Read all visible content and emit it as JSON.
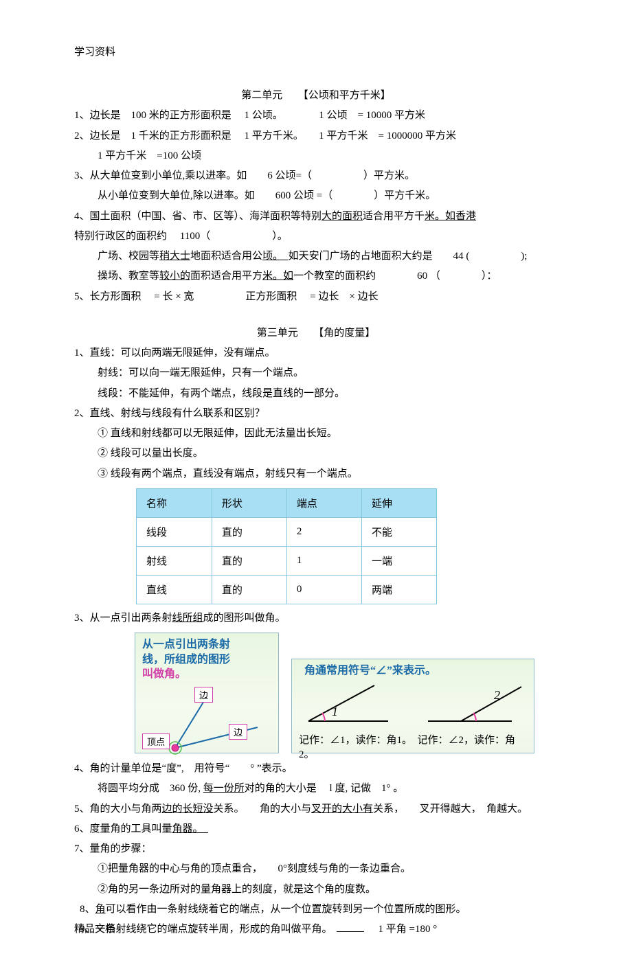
{
  "doc": {
    "header": "学习资料",
    "footer": "精品文档"
  },
  "unit2": {
    "title": "第二单元　　【公顷和平方千米】",
    "l1": "1、边长是　100 米的正方形面积是　 1 公顷。　　　　1 公顷　= 10000 平方米",
    "l2": "2、边长是　1 千米的正方形面积是　 1 平方千米。　　1 平方千米　= 1000000 平方米",
    "l2b": "1 平方千米　=100 公顷",
    "l3a": "3、从大单位变到小单位,乘以进率。如　　6 公顷=（　　　　　）平方米。",
    "l3b": "从小单位变到大单位,除以进率。如　　600 公顷 =（　　　　）平方千米。",
    "l4a_pre": "4、国土面积（中国、省、市、区等）、海洋面积等特别",
    "l4a_u": "大的面积",
    "l4a_post": "适合用平方千",
    "l4a_u2": "米。如香港",
    "l4b": "特别行政区的面积约　 1100（　　　　　　）。",
    "l4c_pre": "广场、校园等",
    "l4c_u": "稍大士",
    "l4c_post": "地面积适合用公",
    "l4c_u2": "顷。　",
    "l4c_tail": "如天安门广场的占地面积大约是　　44 (　　　　　);",
    "l4d_pre": "操场、教室等",
    "l4d_u": "较小的",
    "l4d_post": "面积适合用平方",
    "l4d_u2": "米。如",
    "l4d_tail": "一个教室的面积约　　　　60 （　　　　）：",
    "l5": "5、长方形面积　 =  长  ×  宽　　　　　正方形面积　 =  边长　×  边长"
  },
  "unit3": {
    "title": "第三单元　　【角的度量】",
    "l1a": "1、直线：可以向两端无限延伸，没有端点。",
    "l1b": "射线：可以向一端无限延伸，只有一个端点。",
    "l1c": "线段：不能延伸，有两个端点，线段是直线的一部分。",
    "l2": "2、直线、射线与线段有什么联系和区别？",
    "l2a": "①  直线和射线都可以无限延伸，因此无法量出长短。",
    "l2b": "②  线段可以量出长度。",
    "l2c": "③  线段有两个端点，直线没有端点，射线只有一个端点。",
    "table": {
      "header_bg": "#a8dff5",
      "border_color": "#86c6e0",
      "columns": [
        "名称",
        "形状",
        "端点",
        "延伸"
      ],
      "rows": [
        [
          "线段",
          "直的",
          "2",
          "不能"
        ],
        [
          "射线",
          "直的",
          "1",
          "一端"
        ],
        [
          "直线",
          "直的",
          "0",
          "两端"
        ]
      ]
    },
    "l3_pre": "3、从一点引出两条射",
    "l3_u": "线所组",
    "l3_post": "成的图形叫做角。",
    "fig1": {
      "caption_l1": "从一点引出两条射",
      "caption_l2": "线，所组成的图形",
      "caption_l3": "叫做角。",
      "label_side": "边",
      "label_vertex": "顶点"
    },
    "fig2": {
      "caption": "角通常用符号“∠”来表示。",
      "label_1": "1",
      "label_2": "2",
      "note": "记作：∠1，读作：角1。　记作：∠2，读作：角2。"
    },
    "l4a": "4、角的计量单位是“度”,　用符号“　　° ”表示。",
    "l4b_pre": "将圆平均分成　360  份,",
    "l4b_u": "每一份所",
    "l4b_post": "对的角的大小是　 l  度, 记做　1° 。",
    "l5_pre": "5、角的大小与角两",
    "l5_u": "边的长短没",
    "l5_mid": "关系。　　角的大小与",
    "l5_u2": "叉开的大小有",
    "l5_post": "关系，　　叉开得越大，　角越大。",
    "l6_pre": "6、度量角的工具叫量",
    "l6_u": "角器。　",
    "l7": "7、量角的步骤：",
    "l7a": "①把量角器的中心与角的顶点重合，　　0°刻度线与角的一条边重合。",
    "l7b": "②角的另一条边所对的量角器上的刻度，就是这个角的度数。",
    "l8_pre": "8、",
    "l8_u": "角",
    "l8_post": "可以看作由一条射线绕着它的端点，从一个位置旋转到另一个位置所成的图形。",
    "l9_pre": "9、一条射线绕它的端点旋转半周，形成的角叫做平角。",
    "l9_post": "　1 平角 =180 °"
  }
}
